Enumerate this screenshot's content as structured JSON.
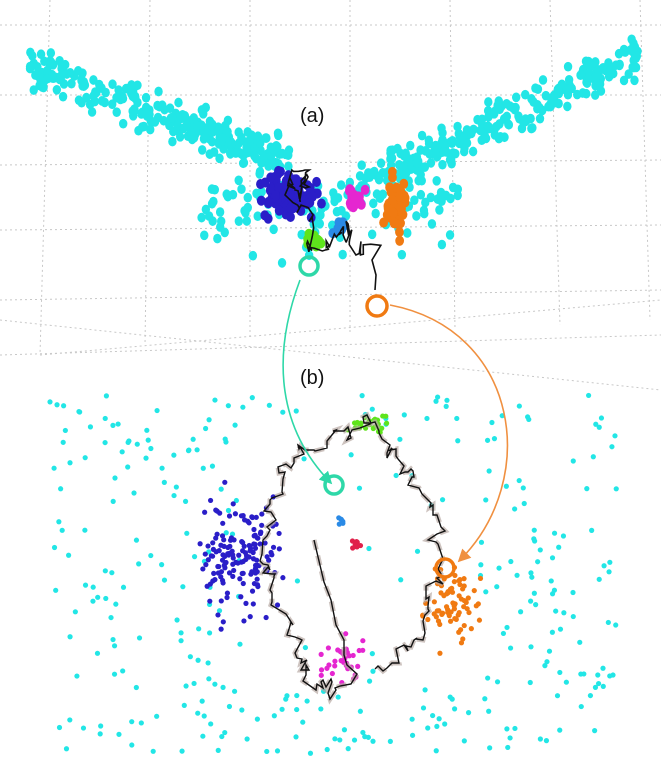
{
  "panels": {
    "a": {
      "label": "(a)"
    },
    "b": {
      "label": "(b)"
    }
  },
  "colors": {
    "background_points": "#22e6e6",
    "cluster_blue": "#2a1ec8",
    "cluster_orange": "#f07a12",
    "cluster_magenta": "#e526d0",
    "cluster_green": "#5fe41c",
    "cluster_red": "#e0204a",
    "cluster_lightblue": "#2a8ae6",
    "trajectory": "#111111",
    "trajectory_halo": "#b8aaa4",
    "link_teal": "#2ed8a8",
    "link_orange": "#f09040",
    "grid": "#c8c8c8"
  },
  "markers": [
    {
      "name": "teal-marker",
      "color": "#2ed8a8"
    },
    {
      "name": "orange-marker",
      "color": "#f07a12"
    }
  ]
}
